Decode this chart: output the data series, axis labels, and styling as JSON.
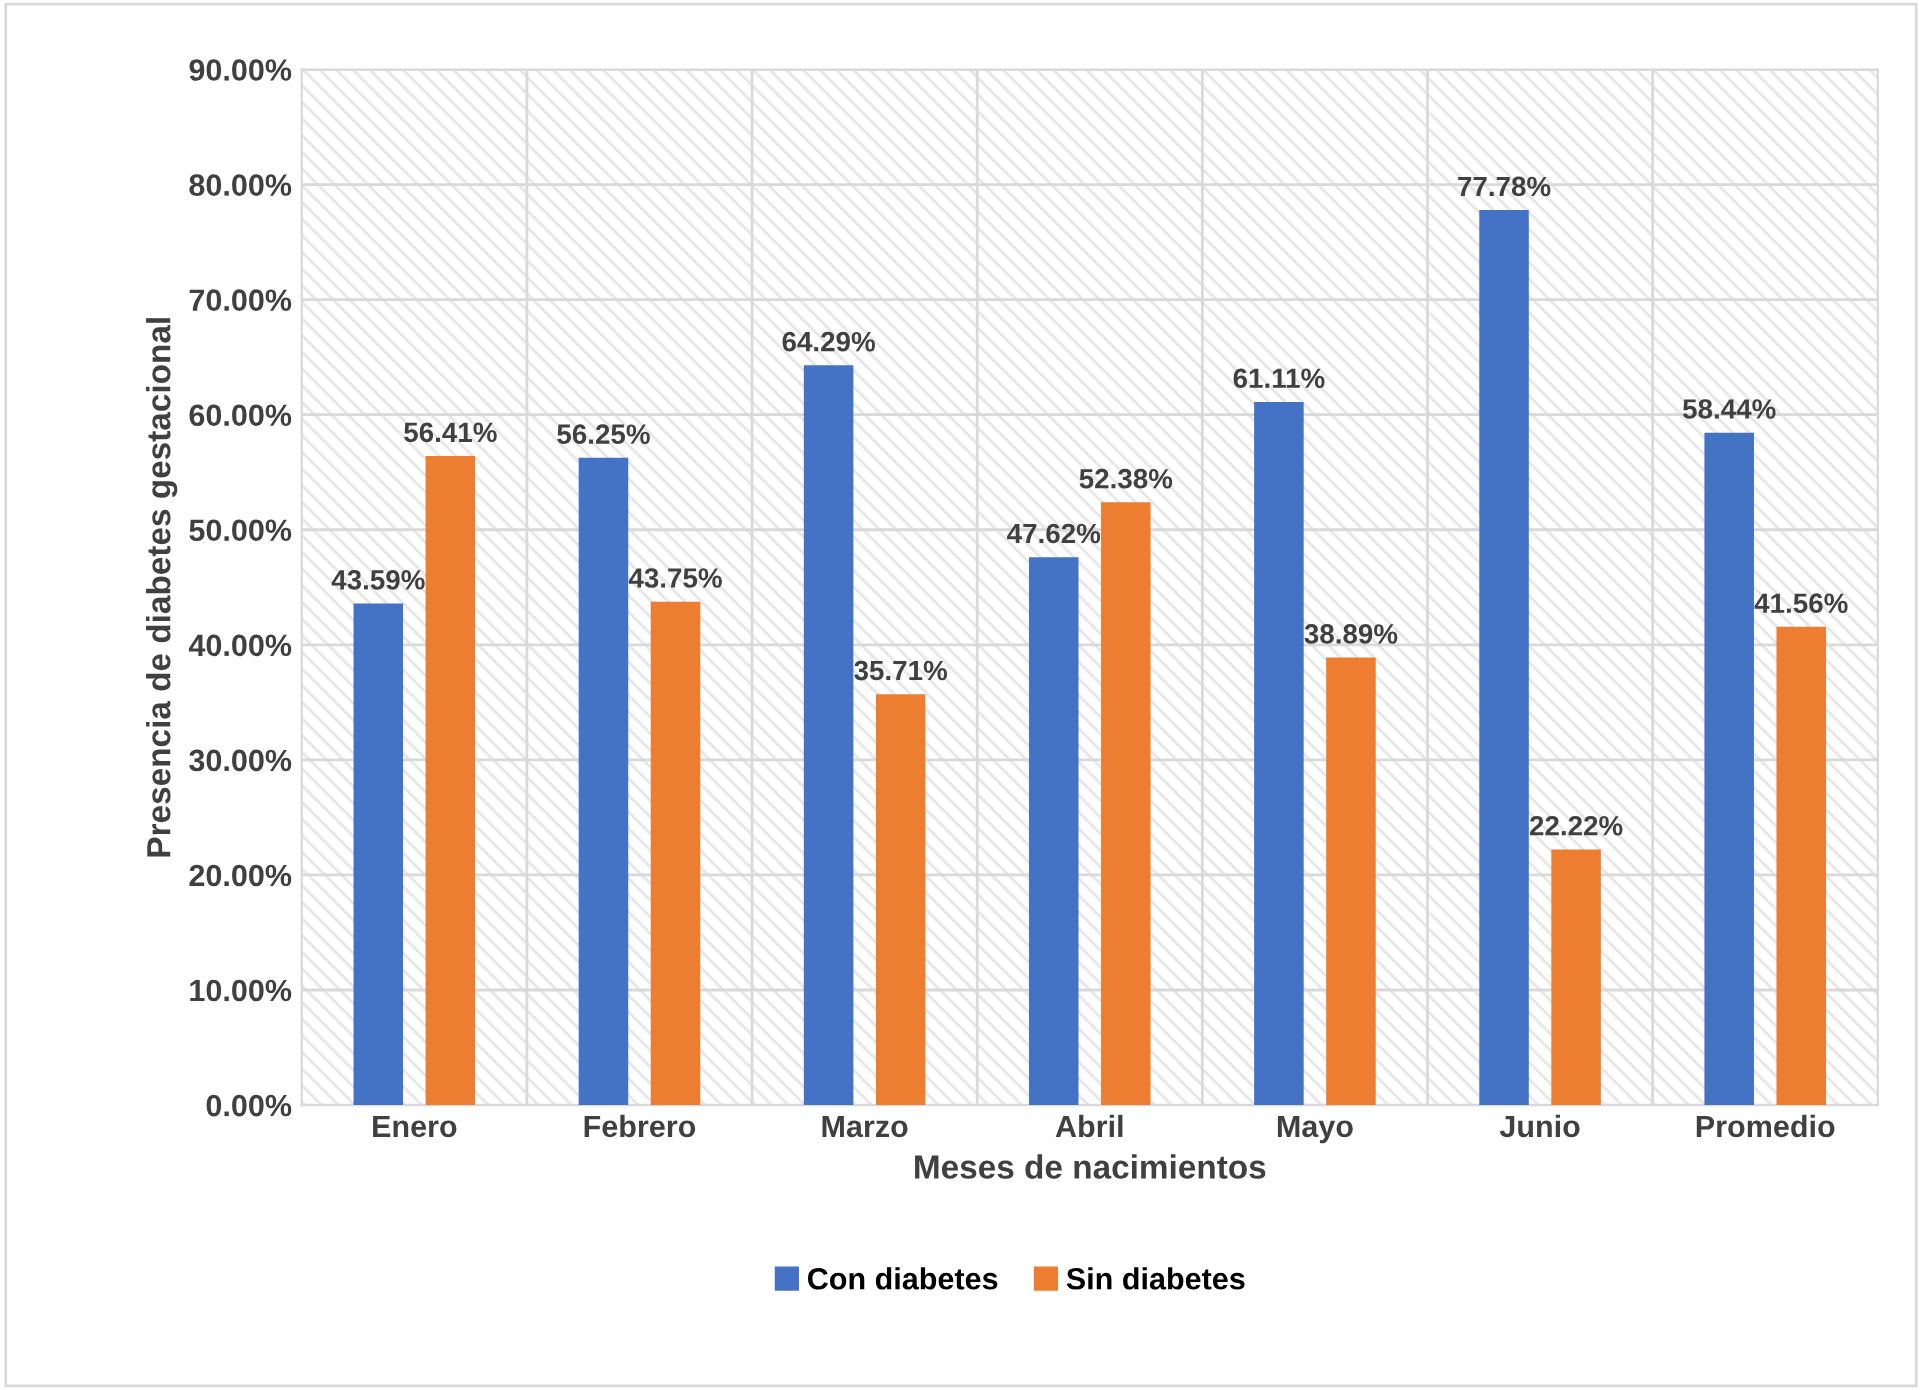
{
  "chart_data": {
    "type": "bar",
    "xlabel": "Meses de nacimientos",
    "ylabel": "Presencia de diabetes gestacional",
    "categories": [
      "Enero",
      "Febrero",
      "Marzo",
      "Abril",
      "Mayo",
      "Junio",
      "Promedio"
    ],
    "series": [
      {
        "name": "Con diabetes",
        "color": "#4472c4",
        "values": [
          43.59,
          56.25,
          64.29,
          47.62,
          61.11,
          77.78,
          58.44
        ],
        "value_labels": [
          "43.59%",
          "56.25%",
          "64.29%",
          "47.62%",
          "61.11%",
          "77.78%",
          "58.44%"
        ]
      },
      {
        "name": "Sin diabetes",
        "color": "#ed7d31",
        "values": [
          56.41,
          43.75,
          35.71,
          52.38,
          38.89,
          22.22,
          41.56
        ],
        "value_labels": [
          "56.41%",
          "43.75%",
          "35.71%",
          "52.38%",
          "38.89%",
          "22.22%",
          "41.56%"
        ]
      }
    ],
    "ylim": [
      0,
      90
    ],
    "yticks": [
      {
        "value": 0,
        "label": "0.00%"
      },
      {
        "value": 10,
        "label": "10.00%"
      },
      {
        "value": 20,
        "label": "20.00%"
      },
      {
        "value": 30,
        "label": "30.00%"
      },
      {
        "value": 40,
        "label": "40.00%"
      },
      {
        "value": 50,
        "label": "50.00%"
      },
      {
        "value": 60,
        "label": "60.00%"
      },
      {
        "value": 70,
        "label": "70.00%"
      },
      {
        "value": 80,
        "label": "80.00%"
      },
      {
        "value": 90,
        "label": "90.00%"
      }
    ],
    "grid": true,
    "legend": "bottom"
  }
}
